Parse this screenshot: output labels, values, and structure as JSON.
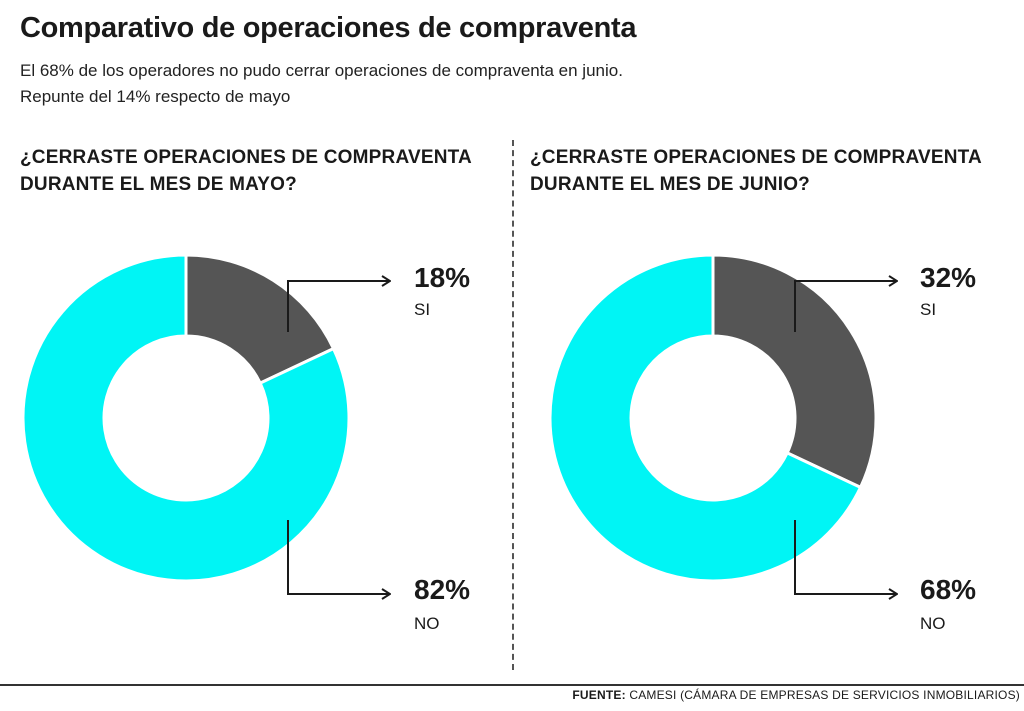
{
  "title": "Comparativo de operaciones de compraventa",
  "subtitle_line1": "El 68% de los operadores no pudo cerrar operaciones de compraventa en junio.",
  "subtitle_line2": "Repunte del 14% respecto de mayo",
  "footer": {
    "label": "FUENTE:",
    "text": "CAMESI (CÁMARA DE EMPRESAS DE SERVICIOS INMOBILIARIOS)"
  },
  "colors": {
    "si": "#555555",
    "no": "#00f5f5"
  },
  "chart_data": [
    {
      "type": "pie",
      "title": "¿CERRASTE OPERACIONES DE COMPRAVENTA DURANTE EL MES DE MAYO?",
      "slices": [
        {
          "label": "SI",
          "value": 18,
          "value_text": "18%"
        },
        {
          "label": "NO",
          "value": 82,
          "value_text": "82%"
        }
      ]
    },
    {
      "type": "pie",
      "title": "¿CERRASTE OPERACIONES DE COMPRAVENTA DURANTE EL MES DE JUNIO?",
      "slices": [
        {
          "label": "SI",
          "value": 32,
          "value_text": "32%"
        },
        {
          "label": "NO",
          "value": 68,
          "value_text": "68%"
        }
      ]
    }
  ]
}
